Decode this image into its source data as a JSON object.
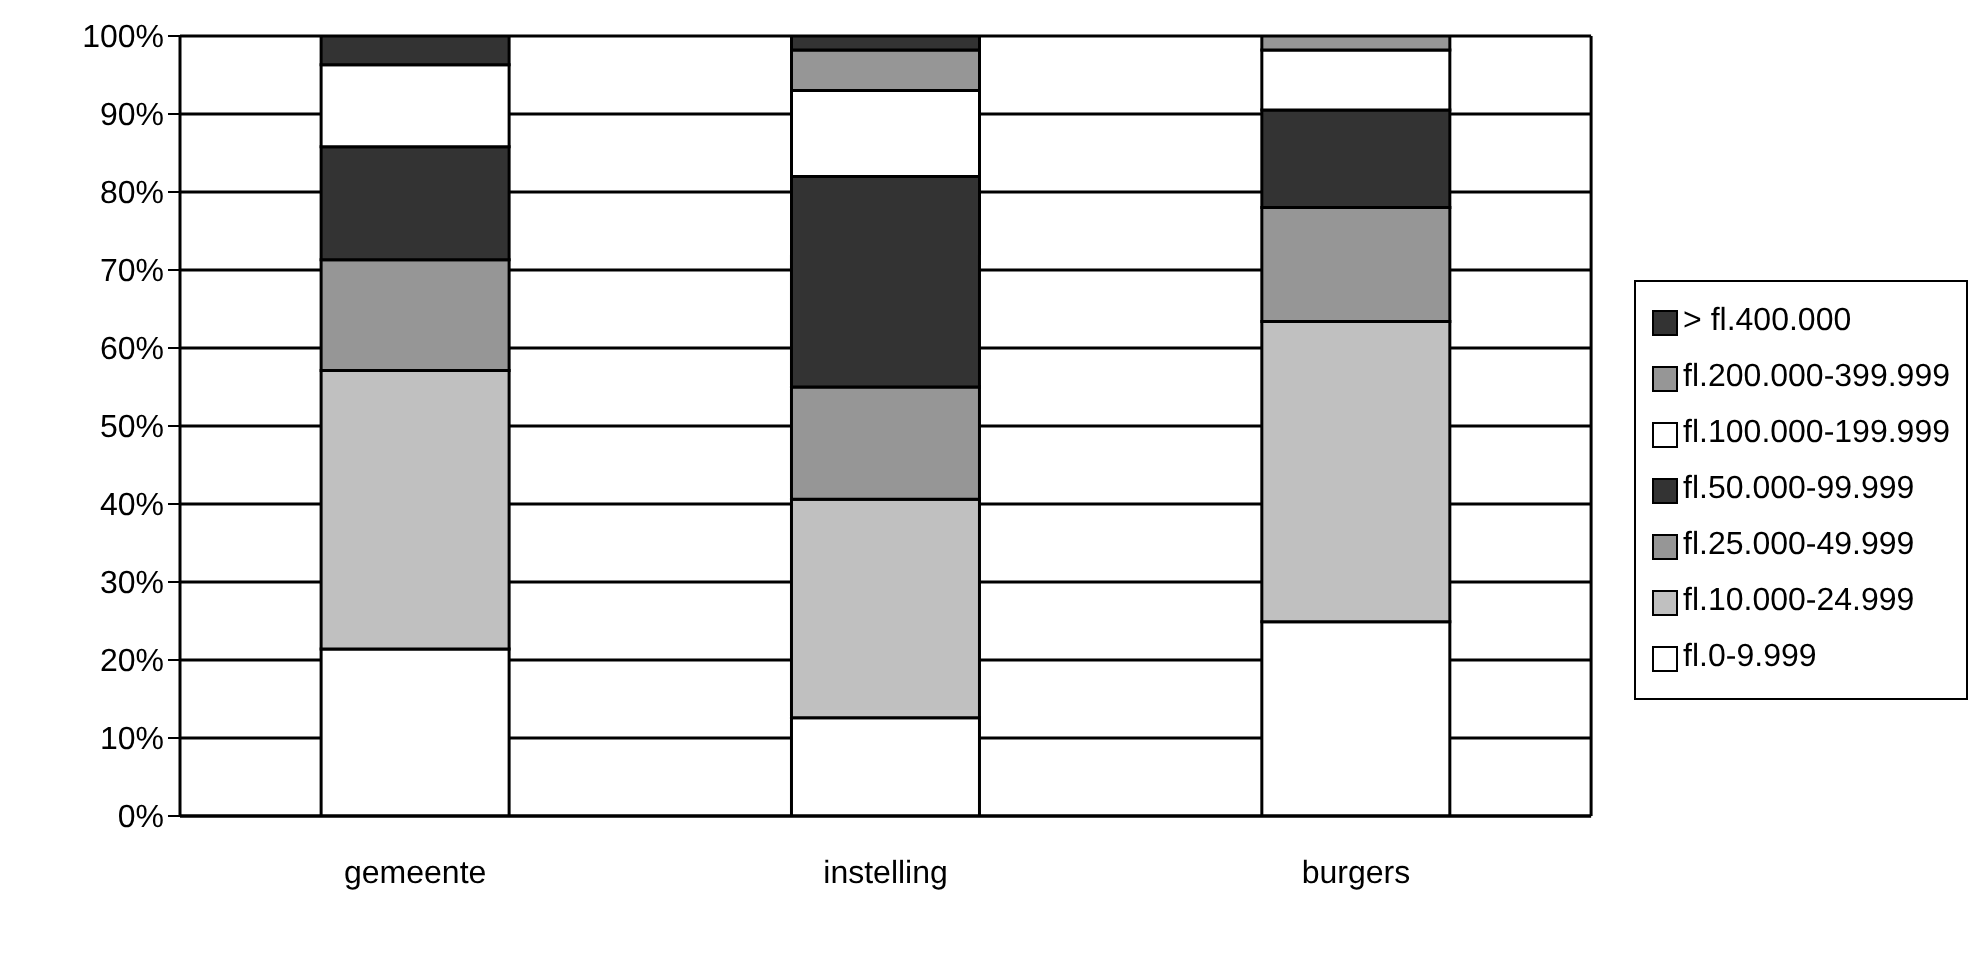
{
  "chart_data": {
    "type": "bar",
    "stacked": true,
    "categories": [
      "gemeente",
      "instelling",
      "burgers"
    ],
    "series": [
      {
        "name": "fl.0-9.999",
        "color": "#ffffff",
        "values": [
          21.4,
          12.6,
          24.9
        ]
      },
      {
        "name": "fl.10.000-24.999",
        "color": "#c0c0c0",
        "values": [
          35.7,
          28.0,
          38.5
        ]
      },
      {
        "name": "fl.25.000-49.999",
        "color": "#969696",
        "values": [
          14.2,
          14.4,
          14.6
        ]
      },
      {
        "name": "fl.50.000-99.999",
        "color": "#333333",
        "values": [
          14.5,
          27.0,
          12.5
        ]
      },
      {
        "name": "fl.100.000-199.999",
        "color": "#ffffff",
        "values": [
          10.5,
          11.0,
          7.7
        ]
      },
      {
        "name": "fl.200.000-399.999",
        "color": "#969696",
        "values": [
          0,
          5.2,
          1.8
        ]
      },
      {
        "name": "> fl.400.000",
        "color": "#333333",
        "values": [
          3.7,
          1.8,
          0
        ]
      }
    ],
    "ylim": [
      0,
      100
    ],
    "yticks": [
      {
        "value": 0,
        "label": "0%"
      },
      {
        "value": 10,
        "label": "10%"
      },
      {
        "value": 20,
        "label": "20%"
      },
      {
        "value": 30,
        "label": "30%"
      },
      {
        "value": 40,
        "label": "40%"
      },
      {
        "value": 50,
        "label": "50%"
      },
      {
        "value": 60,
        "label": "60%"
      },
      {
        "value": 70,
        "label": "70%"
      },
      {
        "value": 80,
        "label": "80%"
      },
      {
        "value": 90,
        "label": "90%"
      },
      {
        "value": 100,
        "label": "100%"
      }
    ],
    "grid": "y",
    "legend": "right"
  }
}
